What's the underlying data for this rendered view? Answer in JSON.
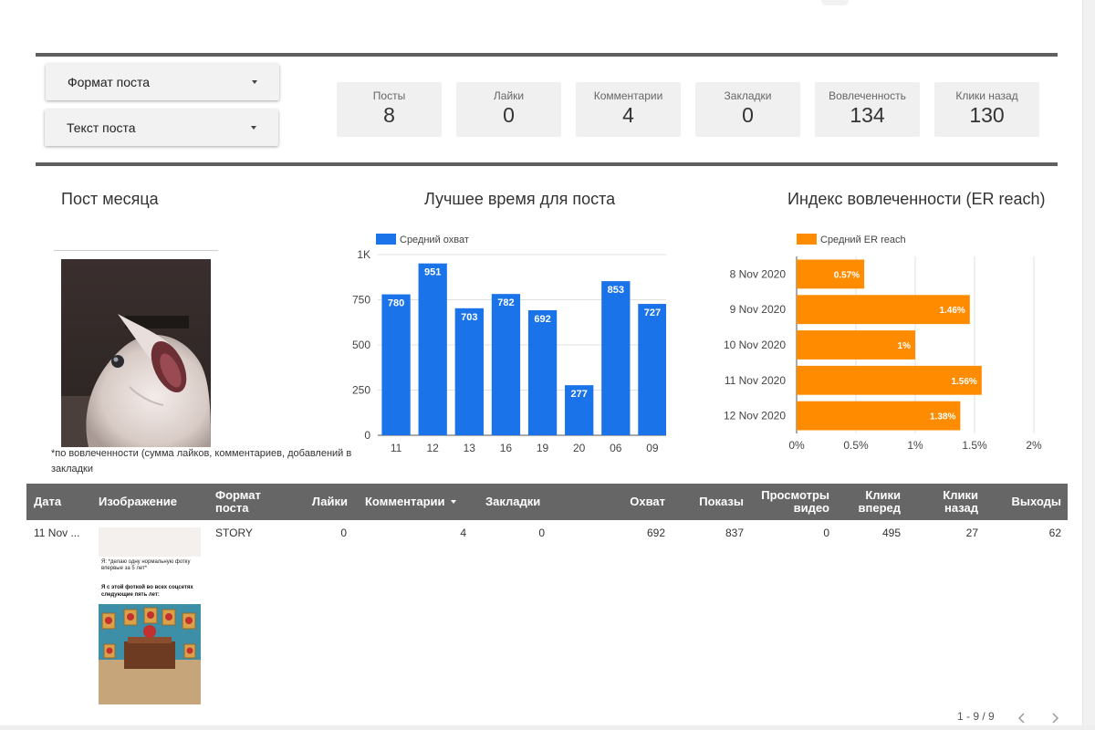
{
  "filters": {
    "post_format": "Формат поста",
    "post_text": "Текст поста"
  },
  "kpis": [
    {
      "label": "Посты",
      "value": "8"
    },
    {
      "label": "Лайки",
      "value": "0"
    },
    {
      "label": "Комментарии",
      "value": "4"
    },
    {
      "label": "Закладки",
      "value": "0"
    },
    {
      "label": "Вовлеченность",
      "value": "134"
    },
    {
      "label": "Клики назад",
      "value": "130"
    }
  ],
  "post_of_month": {
    "title": "Пост месяца",
    "footnote": "*по вовлеченности (сумма лайков, комментариев, добавлений в закладки"
  },
  "best_time": {
    "title": "Лучшее время для поста"
  },
  "er_reach": {
    "title": "Индекс вовлеченности (ER reach)"
  },
  "chart_data": [
    {
      "type": "bar",
      "orientation": "vertical",
      "categories": [
        "11",
        "12",
        "13",
        "16",
        "19",
        "20",
        "06",
        "09"
      ],
      "series": [
        {
          "name": "Средний охват",
          "values": [
            780,
            951,
            703,
            782,
            692,
            277,
            853,
            727
          ],
          "color": "#1a73e8"
        }
      ],
      "y_ticks": [
        "0",
        "250",
        "500",
        "750",
        "1K"
      ],
      "ylim": [
        0,
        1000
      ],
      "data_labels": true,
      "grid": true,
      "legend": "top-left"
    },
    {
      "type": "bar",
      "orientation": "horizontal",
      "categories": [
        "8 Nov 2020",
        "9 Nov 2020",
        "10 Nov 2020",
        "11 Nov 2020",
        "12 Nov 2020"
      ],
      "series": [
        {
          "name": "Средний ER reach",
          "values": [
            0.57,
            1.46,
            1.0,
            1.56,
            1.38
          ],
          "labels": [
            "0.57%",
            "1.46%",
            "1%",
            "1.56%",
            "1.38%"
          ],
          "color": "#ff8c00"
        }
      ],
      "x_ticks": [
        "0%",
        "0.5%",
        "1%",
        "1.5%",
        "2%"
      ],
      "xlim": [
        0,
        2
      ],
      "data_labels": true,
      "grid": true,
      "legend": "top-left"
    }
  ],
  "table": {
    "columns": [
      {
        "key": "date",
        "label": "Дата"
      },
      {
        "key": "image",
        "label": "Изображение"
      },
      {
        "key": "format",
        "label": "Формат поста"
      },
      {
        "key": "likes",
        "label": "Лайки"
      },
      {
        "key": "comments",
        "label": "Комментарии",
        "sorted": true
      },
      {
        "key": "bookmarks",
        "label": "Закладки"
      },
      {
        "key": "reach",
        "label": "Охват"
      },
      {
        "key": "impressions",
        "label": "Показы"
      },
      {
        "key": "video_views",
        "label": "Просмотры видео"
      },
      {
        "key": "clicks_forward",
        "label": "Клики вперед"
      },
      {
        "key": "clicks_back",
        "label": "Клики назад"
      },
      {
        "key": "exits",
        "label": "Выходы"
      }
    ],
    "rows": [
      {
        "date": "11 Nov ...",
        "format": "STORY",
        "likes": "0",
        "comments": "4",
        "bookmarks": "0",
        "reach": "692",
        "impressions": "837",
        "video_views": "0",
        "clicks_forward": "495",
        "clicks_back": "27",
        "exits": "62",
        "image_caption_1": "Я: *делаю одну нормальную фотку впервые за 5 лет*",
        "image_caption_2": "Я с этой фоткой во всех соцсетях следующие пять лет:"
      }
    ],
    "pagination": "1 - 9 / 9"
  },
  "colors": {
    "accent_blue": "#1a73e8",
    "accent_orange": "#ff8c00",
    "header_gray": "#666666"
  }
}
